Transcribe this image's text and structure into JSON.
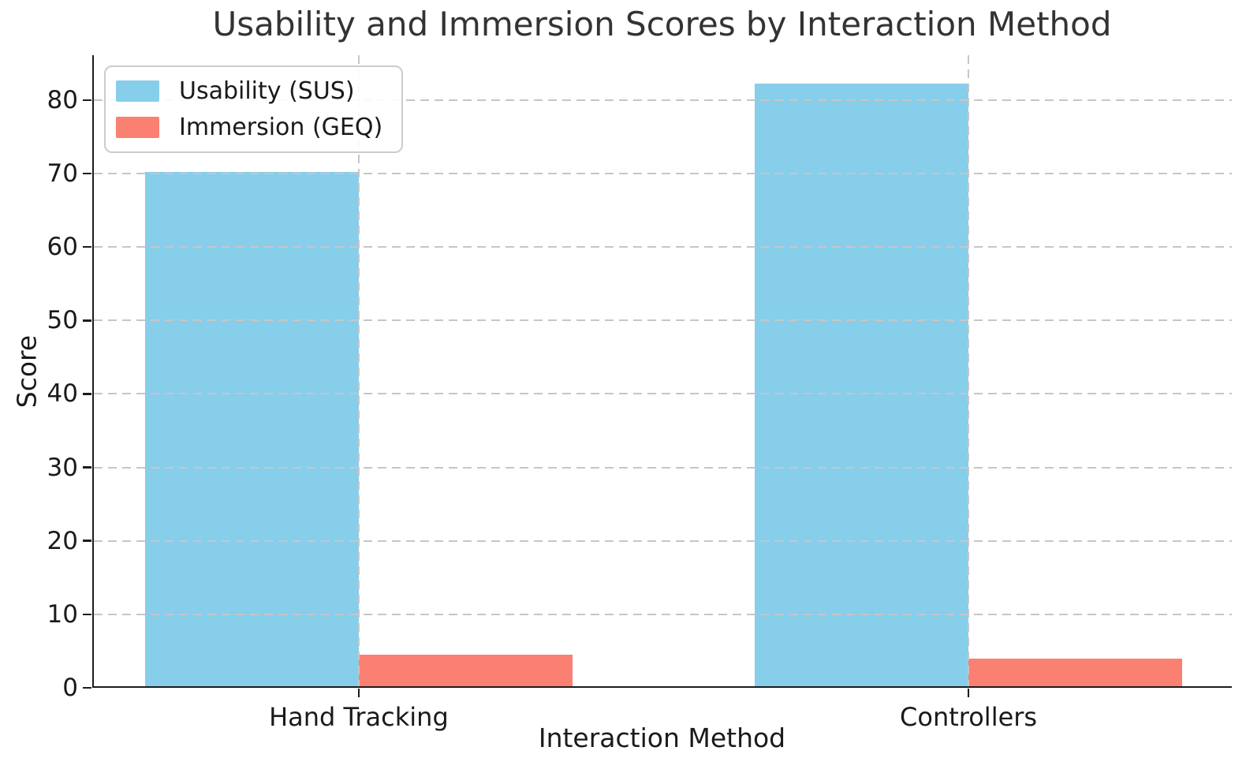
{
  "chart_data": {
    "type": "bar",
    "title": "Usability and Immersion Scores by Interaction Method",
    "xlabel": "Interaction Method",
    "ylabel": "Score",
    "categories": [
      "Hand Tracking",
      "Controllers"
    ],
    "series": [
      {
        "name": "Usability (SUS)",
        "color": "#87CEEB",
        "values": [
          70,
          82
        ]
      },
      {
        "name": "Immersion (GEQ)",
        "color": "#FA8072",
        "values": [
          4.3,
          3.8
        ]
      }
    ],
    "ylim": [
      0,
      86.1
    ],
    "yticks": [
      0,
      10,
      20,
      30,
      40,
      50,
      60,
      70,
      80
    ],
    "xlim": [
      -0.4345,
      1.4345
    ],
    "bar_width": 0.35,
    "grid": "dashed",
    "grid_on": true,
    "legend_position": "upper-left",
    "colors": {
      "grid": "#c6c6c6",
      "axis": "#1c1c1c",
      "title_text": "#333333",
      "tick_text": "#1a1a1a"
    }
  }
}
